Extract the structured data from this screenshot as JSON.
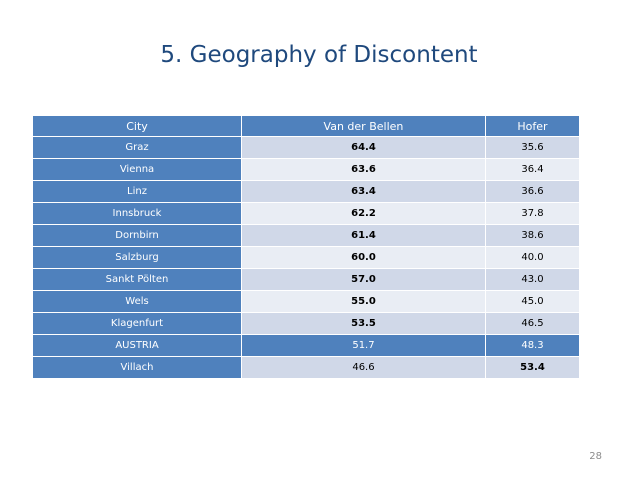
{
  "header": {
    "title": "5. Geography of Discontent"
  },
  "table": {
    "columns": [
      "City",
      "Van der Bellen",
      "Hofer"
    ],
    "rows": [
      [
        "Graz",
        "64.4",
        "35.6"
      ],
      [
        "Vienna",
        "63.6",
        "36.4"
      ],
      [
        "Linz",
        "63.4",
        "36.6"
      ],
      [
        "Innsbruck",
        "62.2",
        "37.8"
      ],
      [
        "Dornbirn",
        "61.4",
        "38.6"
      ],
      [
        "Salzburg",
        "60.0",
        "40.0"
      ],
      [
        "Sankt Pölten",
        "57.0",
        "43.0"
      ],
      [
        "Wels",
        "55.0",
        "45.0"
      ],
      [
        "Klagenfurt",
        "53.5",
        "46.5"
      ],
      [
        "AUSTRIA",
        "51.7",
        "48.3"
      ],
      [
        "Villach",
        "46.6",
        "53.4"
      ]
    ]
  },
  "footer": {
    "page_number": "28"
  }
}
